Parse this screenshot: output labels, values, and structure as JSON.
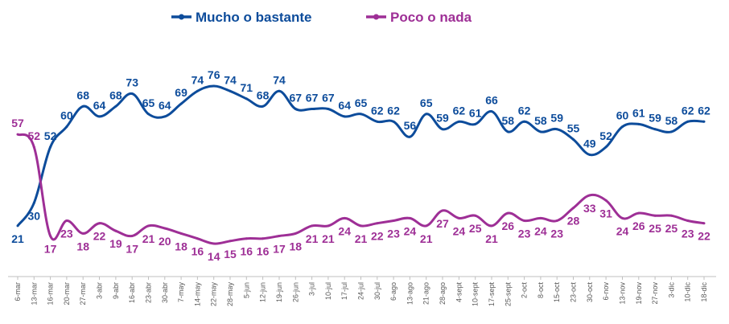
{
  "chart_data": {
    "type": "line",
    "title": "",
    "xlabel": "",
    "ylabel": "",
    "ylim": [
      0,
      90
    ],
    "legend_position": "top-center",
    "grid": false,
    "categories": [
      "6-mar",
      "13-mar",
      "16-mar",
      "20-mar",
      "27-mar",
      "3-abr",
      "9-abr",
      "16-abr",
      "23-abr",
      "30-abr",
      "7-may",
      "14-may",
      "22-may",
      "28-may",
      "5-jun",
      "12-jun",
      "19-jun",
      "26-jun",
      "3-jul",
      "10-jul",
      "17-jul",
      "24-jul",
      "30-jul",
      "6-ago",
      "13-ago",
      "21-ago",
      "28-ago",
      "4-sept",
      "10-sept",
      "17-sept",
      "25-sept",
      "2-oct",
      "8-oct",
      "15-oct",
      "23-oct",
      "30-oct",
      "6-nov",
      "13-nov",
      "19-nov",
      "27-nov",
      "3-dic",
      "10-dic",
      "18-dic"
    ],
    "series": [
      {
        "name": "Mucho o bastante",
        "color": "#0d4c9b",
        "values": [
          21,
          30,
          52,
          60,
          68,
          64,
          68,
          73,
          65,
          64,
          69,
          74,
          76,
          74,
          71,
          68,
          74,
          67,
          67,
          67,
          64,
          65,
          62,
          62,
          56,
          65,
          59,
          62,
          61,
          66,
          58,
          62,
          58,
          59,
          55,
          49,
          52,
          60,
          61,
          59,
          58,
          62,
          62
        ]
      },
      {
        "name": "Poco o nada",
        "color": "#9e2f96",
        "values": [
          57,
          52,
          17,
          23,
          18,
          22,
          19,
          17,
          21,
          20,
          18,
          16,
          14,
          15,
          16,
          16,
          17,
          18,
          21,
          21,
          24,
          21,
          22,
          23,
          24,
          21,
          27,
          24,
          25,
          21,
          26,
          23,
          24,
          23,
          28,
          33,
          31,
          24,
          26,
          25,
          25,
          23,
          22
        ]
      }
    ]
  }
}
